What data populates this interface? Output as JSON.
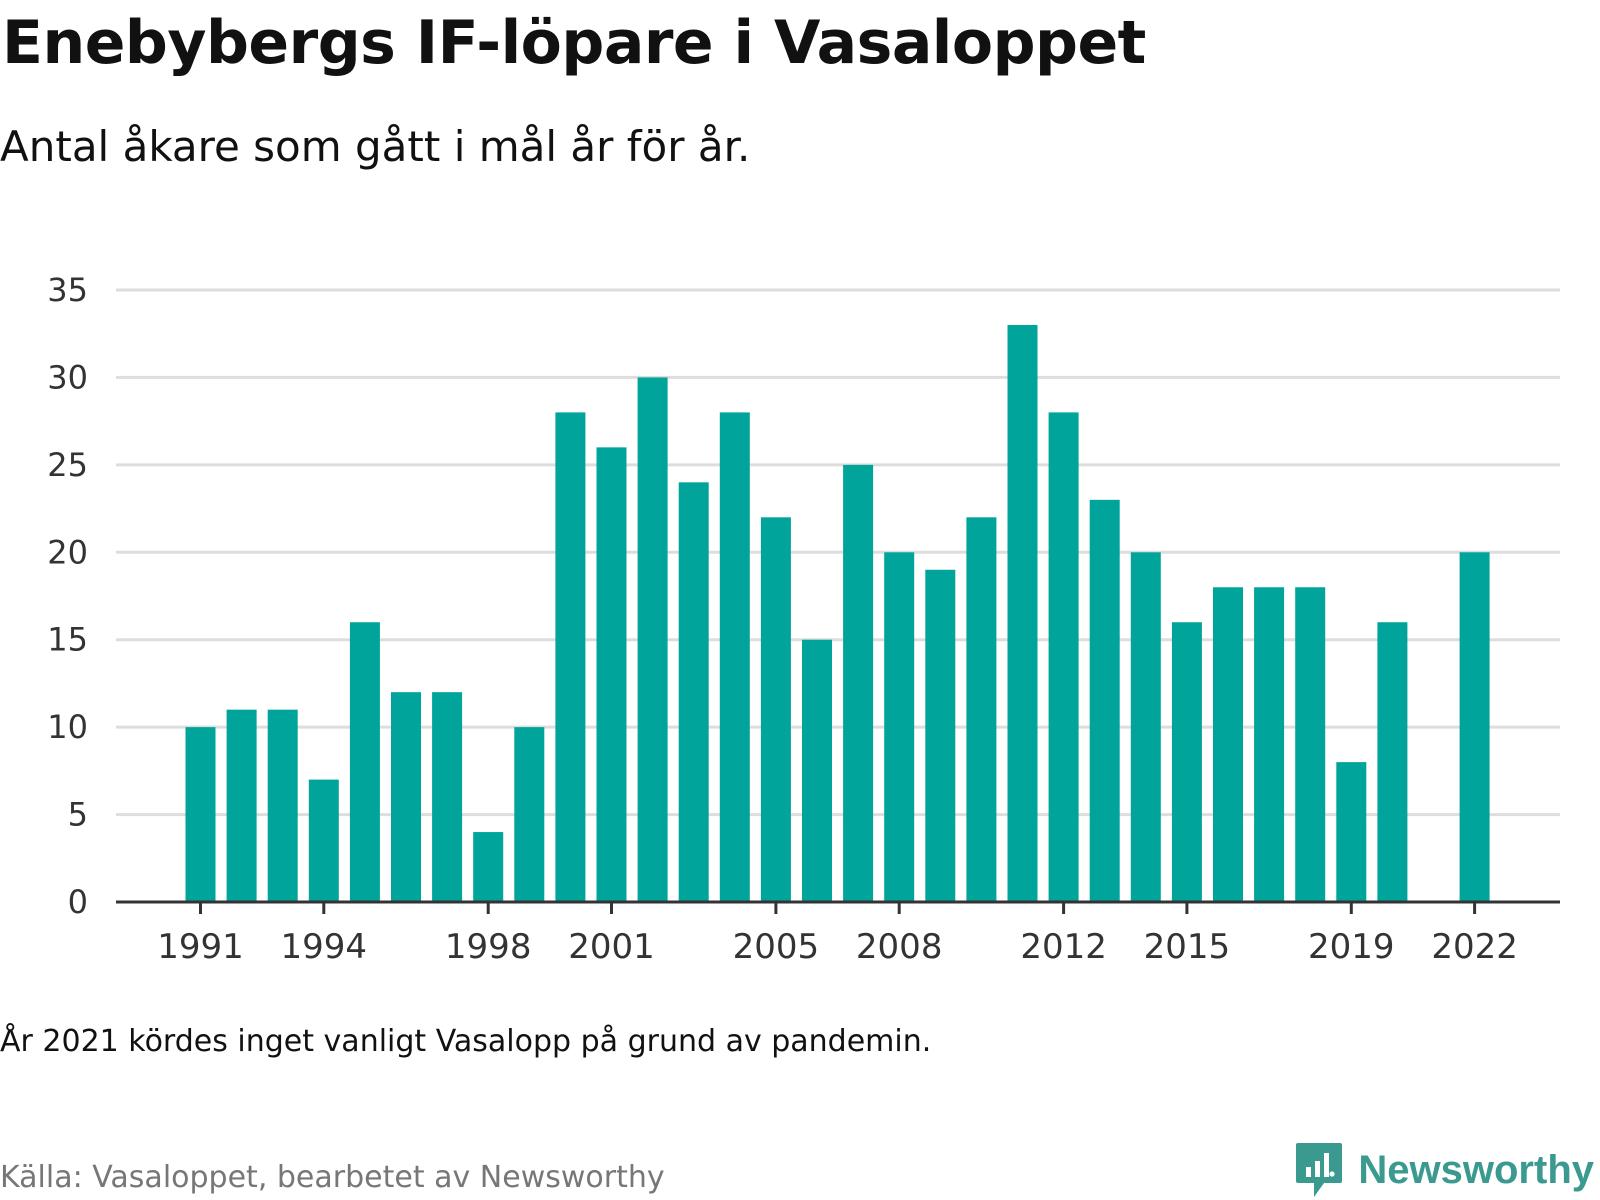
{
  "title": "Enebybergs IF-löpare i Vasaloppet",
  "subtitle": "Antal åkare som gått i mål år för år.",
  "note": "År 2021 kördes inget vanligt Vasalopp på grund av pandemin.",
  "source": "Källa: Vasaloppet, bearbetet av Newsworthy",
  "brand": {
    "name": "Newsworthy",
    "icon": "newsworthy-logo-icon",
    "color": "#3a9a8f"
  },
  "chart_data": {
    "type": "bar",
    "title": "",
    "xlabel": "",
    "ylabel": "",
    "ylim": [
      0,
      35
    ],
    "yticks": [
      0,
      5,
      10,
      15,
      20,
      25,
      30,
      35
    ],
    "xtick_labels": [
      "1991",
      "1994",
      "1998",
      "2001",
      "2005",
      "2008",
      "2012",
      "2015",
      "2019",
      "2022"
    ],
    "grid": true,
    "bar_color": "#00a49a",
    "categories": [
      "1991",
      "1992",
      "1993",
      "1994",
      "1995",
      "1996",
      "1997",
      "1998",
      "1999",
      "2000",
      "2001",
      "2002",
      "2003",
      "2004",
      "2005",
      "2006",
      "2007",
      "2008",
      "2009",
      "2010",
      "2011",
      "2012",
      "2013",
      "2014",
      "2015",
      "2016",
      "2017",
      "2018",
      "2019",
      "2020",
      "2021",
      "2022"
    ],
    "values": [
      10,
      11,
      11,
      7,
      16,
      12,
      12,
      4,
      10,
      28,
      26,
      30,
      24,
      28,
      22,
      15,
      25,
      20,
      19,
      22,
      33,
      28,
      23,
      20,
      16,
      18,
      18,
      18,
      8,
      16,
      null,
      20
    ]
  }
}
